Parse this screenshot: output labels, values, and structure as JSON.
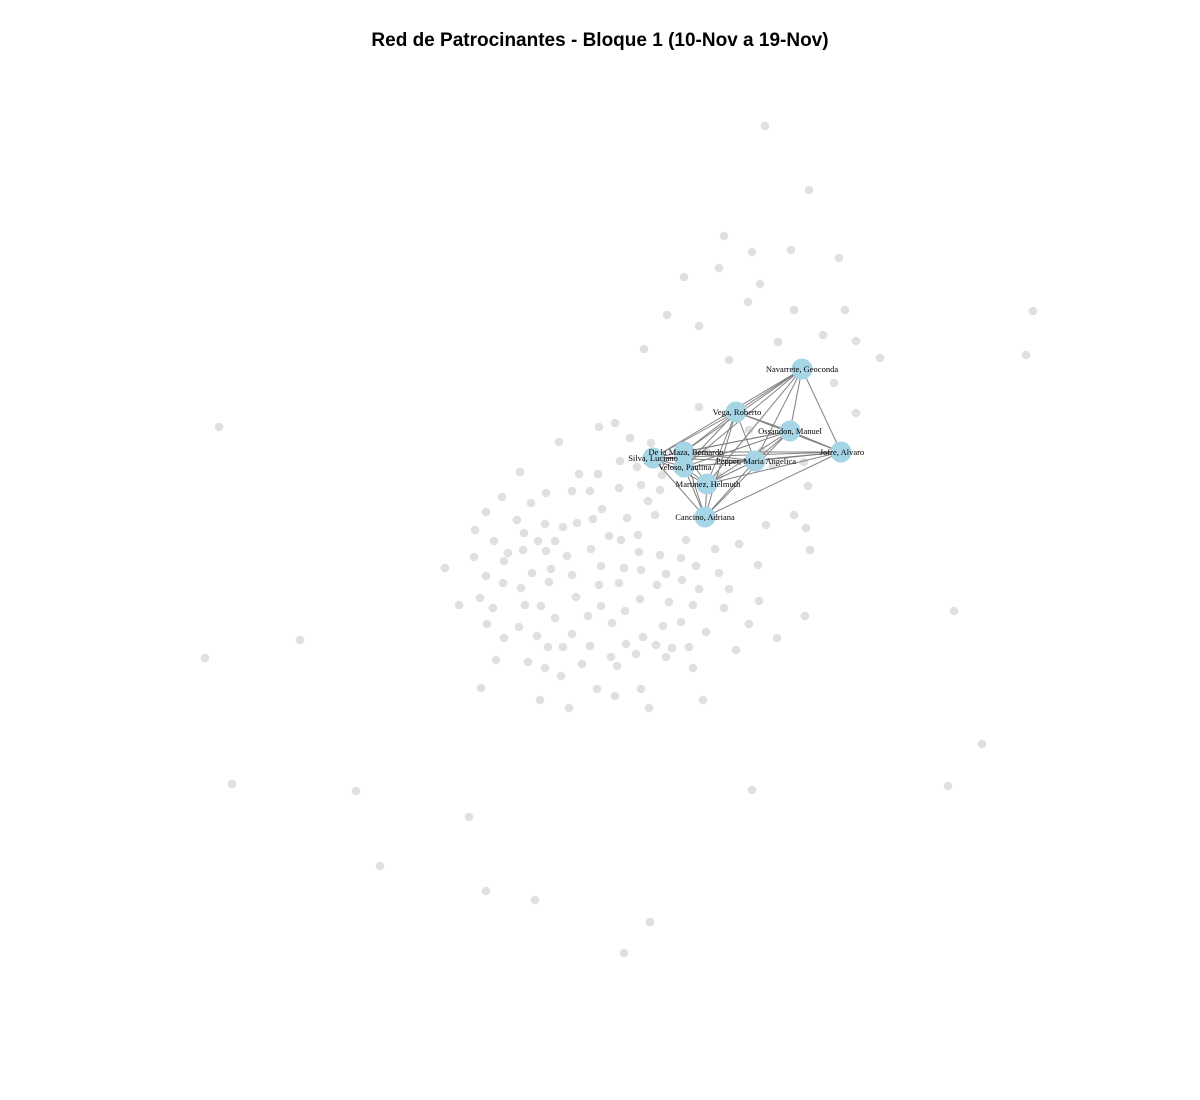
{
  "title": "Red de Patrocinantes - Bloque 1 (10-Nov a 19-Nov)",
  "colors": {
    "active_node": "#a6d5e6",
    "inactive_node": "#e0e0e0",
    "edge": "#808080",
    "label": "#000000"
  },
  "active_nodes": [
    {
      "id": "navarrete",
      "label": "Navarrete, Geoconda"
    },
    {
      "id": "vega",
      "label": "Vega, Roberto"
    },
    {
      "id": "ossandon",
      "label": "Ossandon, Manuel"
    },
    {
      "id": "delamaza",
      "label": "De la Maza, Bernardo"
    },
    {
      "id": "silva",
      "label": "Silva, Luciano"
    },
    {
      "id": "veloso",
      "label": "Veloso, Paulina"
    },
    {
      "id": "pepper",
      "label": "Pepper, Maria Angelica"
    },
    {
      "id": "jofre",
      "label": "Jofre, Alvaro"
    },
    {
      "id": "martinez",
      "label": "Martinez, Helmuth"
    },
    {
      "id": "cancino",
      "label": "Cancino, Adriana"
    }
  ],
  "edges": [
    [
      "navarrete",
      "vega"
    ],
    [
      "navarrete",
      "ossandon"
    ],
    [
      "navarrete",
      "delamaza"
    ],
    [
      "navarrete",
      "silva"
    ],
    [
      "navarrete",
      "veloso"
    ],
    [
      "navarrete",
      "pepper"
    ],
    [
      "navarrete",
      "jofre"
    ],
    [
      "navarrete",
      "martinez"
    ],
    [
      "vega",
      "ossandon"
    ],
    [
      "vega",
      "delamaza"
    ],
    [
      "vega",
      "silva"
    ],
    [
      "vega",
      "veloso"
    ],
    [
      "vega",
      "pepper"
    ],
    [
      "vega",
      "jofre"
    ],
    [
      "vega",
      "martinez"
    ],
    [
      "vega",
      "cancino"
    ],
    [
      "ossandon",
      "delamaza"
    ],
    [
      "ossandon",
      "silva"
    ],
    [
      "ossandon",
      "veloso"
    ],
    [
      "ossandon",
      "pepper"
    ],
    [
      "ossandon",
      "jofre"
    ],
    [
      "ossandon",
      "martinez"
    ],
    [
      "ossandon",
      "cancino"
    ],
    [
      "delamaza",
      "silva"
    ],
    [
      "delamaza",
      "veloso"
    ],
    [
      "delamaza",
      "pepper"
    ],
    [
      "delamaza",
      "jofre"
    ],
    [
      "delamaza",
      "martinez"
    ],
    [
      "delamaza",
      "cancino"
    ],
    [
      "silva",
      "veloso"
    ],
    [
      "silva",
      "pepper"
    ],
    [
      "silva",
      "jofre"
    ],
    [
      "silva",
      "martinez"
    ],
    [
      "silva",
      "cancino"
    ],
    [
      "veloso",
      "pepper"
    ],
    [
      "veloso",
      "jofre"
    ],
    [
      "veloso",
      "martinez"
    ],
    [
      "veloso",
      "cancino"
    ],
    [
      "pepper",
      "jofre"
    ],
    [
      "pepper",
      "martinez"
    ],
    [
      "pepper",
      "cancino"
    ],
    [
      "jofre",
      "martinez"
    ],
    [
      "jofre",
      "cancino"
    ],
    [
      "martinez",
      "cancino"
    ]
  ],
  "inactive_node_count": 203
}
